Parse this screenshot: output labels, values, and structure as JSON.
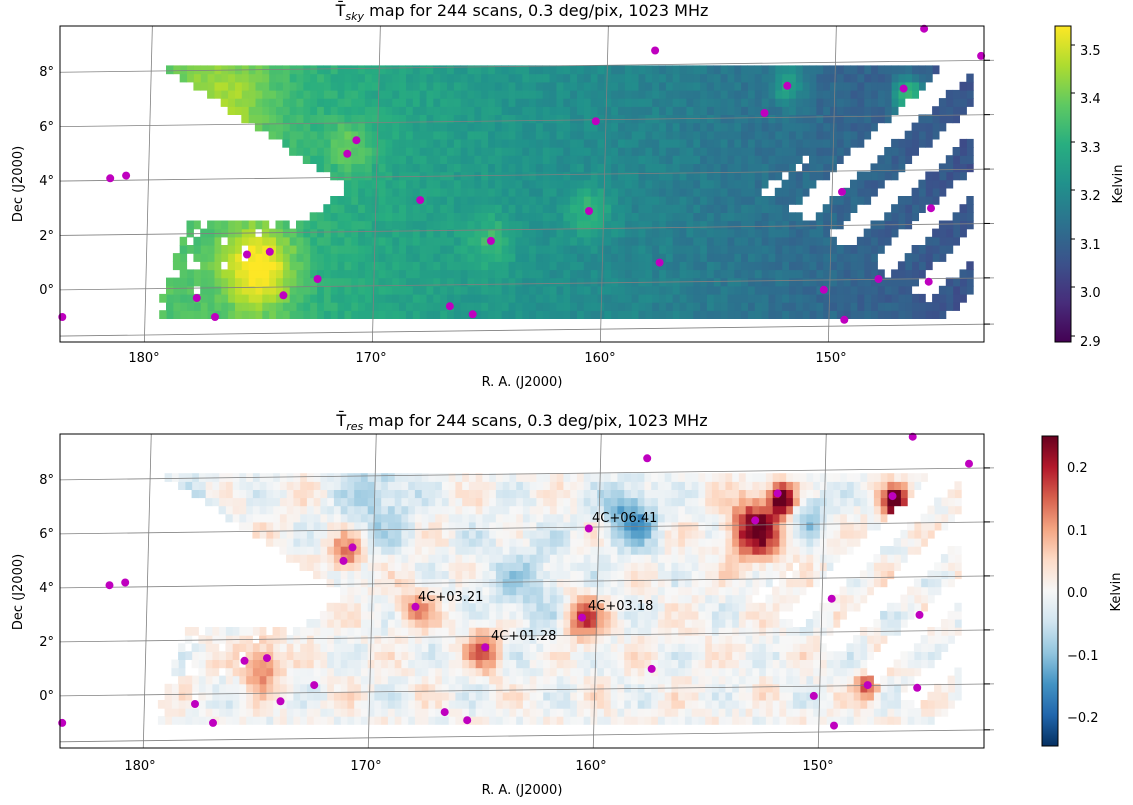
{
  "chart_data": [
    {
      "type": "heatmap",
      "title_symbol": "T̄",
      "title_subscript": "sky",
      "title_rest": " map for 244 scans, 0.3 deg/pix, 1023 MHz",
      "xlabel": "R. A. (J2000)",
      "ylabel": "Dec (J2000)",
      "ra_ticks": [
        "180°",
        "170°",
        "160°",
        "150°"
      ],
      "dec_ticks": [
        "8°",
        "6°",
        "4°",
        "2°",
        "0°"
      ],
      "xlim_ra": [
        183.7,
        142.8
      ],
      "ylim_dec": [
        -1.9,
        9.7
      ],
      "colorbar": {
        "label": "Kelvin",
        "colormap": "viridis",
        "range": [
          2.9,
          3.55
        ],
        "ticks": [
          "3.5",
          "3.4",
          "3.3",
          "3.2",
          "3.1",
          "3.0",
          "2.9"
        ]
      },
      "marker_color": "#bf00bf"
    },
    {
      "type": "heatmap",
      "title_symbol": "T̄",
      "title_subscript": "res",
      "title_rest": " map for 244 scans, 0.3 deg/pix, 1023 MHz",
      "xlabel": "R. A. (J2000)",
      "ylabel": "Dec (J2000)",
      "ra_ticks": [
        "180°",
        "170°",
        "160°",
        "150°"
      ],
      "dec_ticks": [
        "8°",
        "6°",
        "4°",
        "2°",
        "0°"
      ],
      "xlim_ra": [
        183.7,
        142.8
      ],
      "ylim_dec": [
        -1.9,
        9.7
      ],
      "colorbar": {
        "label": "Kelvin",
        "colormap": "RdBu_r",
        "range": [
          -0.25,
          0.25
        ],
        "ticks": [
          "0.2",
          "0.1",
          "0.0",
          "−0.1",
          "−0.2"
        ]
      },
      "marker_color": "#bf00bf",
      "annotations": [
        {
          "text": "4C+06.41",
          "ra": 160.4,
          "dec": 6.2
        },
        {
          "text": "4C+03.21",
          "ra": 167.8,
          "dec": 3.3
        },
        {
          "text": "4C+03.18",
          "ra": 160.5,
          "dec": 2.9
        },
        {
          "text": "4C+01.28",
          "ra": 164.8,
          "dec": 1.8
        }
      ]
    }
  ],
  "sources": [
    {
      "ra": 183.6,
      "dec": -1.0
    },
    {
      "ra": 181.5,
      "dec": 4.1
    },
    {
      "ra": 180.8,
      "dec": 4.2
    },
    {
      "ra": 177.7,
      "dec": -0.3
    },
    {
      "ra": 176.9,
      "dec": -1.0
    },
    {
      "ra": 175.5,
      "dec": 1.3
    },
    {
      "ra": 174.5,
      "dec": 1.4
    },
    {
      "ra": 173.9,
      "dec": -0.2
    },
    {
      "ra": 172.4,
      "dec": 0.4
    },
    {
      "ra": 171.1,
      "dec": 5.0
    },
    {
      "ra": 170.7,
      "dec": 5.5
    },
    {
      "ra": 167.9,
      "dec": 3.3
    },
    {
      "ra": 166.6,
      "dec": -0.6
    },
    {
      "ra": 165.6,
      "dec": -0.9
    },
    {
      "ra": 164.8,
      "dec": 1.8
    },
    {
      "ra": 160.5,
      "dec": 2.9
    },
    {
      "ra": 160.2,
      "dec": 6.2
    },
    {
      "ra": 157.6,
      "dec": 8.8
    },
    {
      "ra": 157.4,
      "dec": 1.0
    },
    {
      "ra": 152.8,
      "dec": 6.5
    },
    {
      "ra": 151.8,
      "dec": 7.5
    },
    {
      "ra": 150.2,
      "dec": 0.0
    },
    {
      "ra": 149.4,
      "dec": 3.6
    },
    {
      "ra": 149.3,
      "dec": -1.1
    },
    {
      "ra": 147.8,
      "dec": 0.4
    },
    {
      "ra": 146.7,
      "dec": 7.4
    },
    {
      "ra": 145.8,
      "dec": 9.6
    },
    {
      "ra": 145.6,
      "dec": 0.3
    },
    {
      "ra": 145.5,
      "dec": 3.0
    },
    {
      "ra": 143.3,
      "dec": 8.6
    }
  ]
}
